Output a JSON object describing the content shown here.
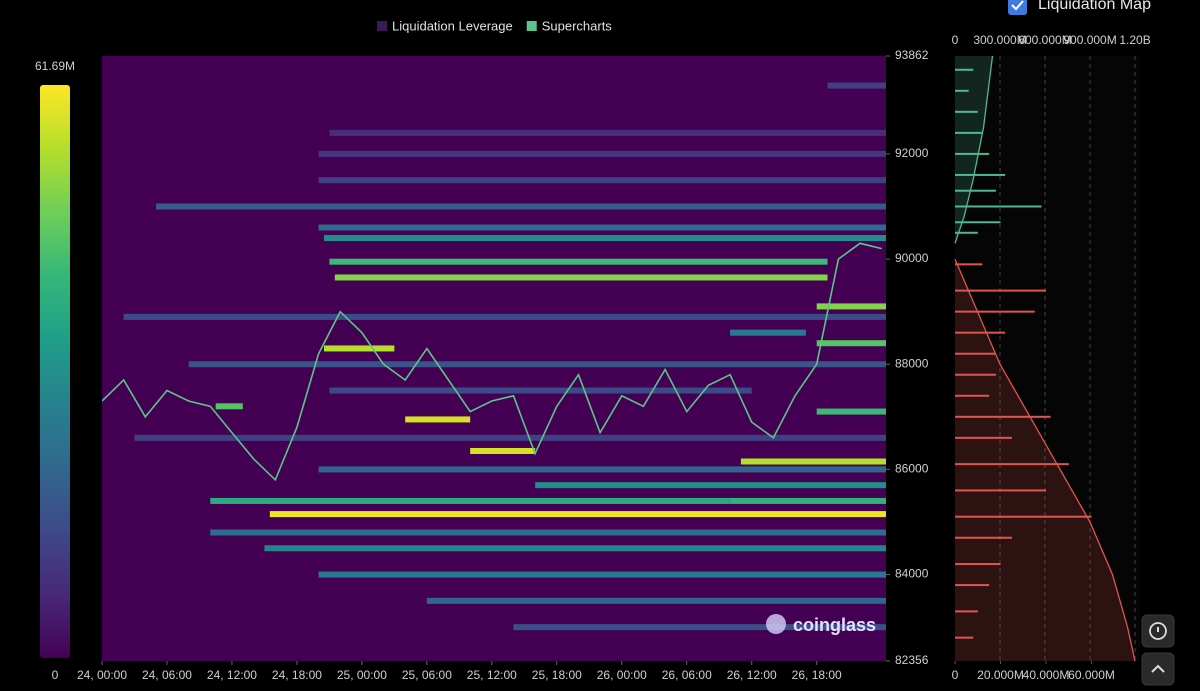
{
  "chart_data": [
    {
      "type": "heatmap",
      "series": [
        {
          "name": "Liquidation Leverage",
          "color": "#3b1a56",
          "bands": [
            {
              "price": 85150,
              "start": 15.5,
              "end": 72.4,
              "value": 60
            },
            {
              "price": 86150,
              "start": 59,
              "end": 72.4,
              "value": 55
            },
            {
              "price": 85400,
              "start": 58,
              "end": 72.4,
              "value": 40
            },
            {
              "price": 85700,
              "start": 40,
              "end": 72.4,
              "value": 30
            },
            {
              "price": 84500,
              "start": 15,
              "end": 72.4,
              "value": 28
            },
            {
              "price": 84000,
              "start": 20,
              "end": 72.4,
              "value": 25
            },
            {
              "price": 83500,
              "start": 30,
              "end": 72.4,
              "value": 20
            },
            {
              "price": 83000,
              "start": 38,
              "end": 72.4,
              "value": 15
            },
            {
              "price": 84800,
              "start": 10,
              "end": 72.4,
              "value": 22
            },
            {
              "price": 86600,
              "start": 3,
              "end": 72.4,
              "value": 12
            },
            {
              "price": 86950,
              "start": 28,
              "end": 34,
              "value": 58
            },
            {
              "price": 86350,
              "start": 34,
              "end": 40,
              "value": 58
            },
            {
              "price": 88300,
              "start": 20.5,
              "end": 27,
              "value": 55
            },
            {
              "price": 87500,
              "start": 21,
              "end": 60,
              "value": 14
            },
            {
              "price": 89650,
              "start": 21.5,
              "end": 67,
              "value": 50
            },
            {
              "price": 89950,
              "start": 21,
              "end": 67,
              "value": 42
            },
            {
              "price": 90400,
              "start": 20.5,
              "end": 72.4,
              "value": 30
            },
            {
              "price": 90600,
              "start": 20,
              "end": 72.4,
              "value": 22
            },
            {
              "price": 91000,
              "start": 5,
              "end": 72.4,
              "value": 18
            },
            {
              "price": 91500,
              "start": 20,
              "end": 72.4,
              "value": 12
            },
            {
              "price": 92000,
              "start": 20,
              "end": 72.4,
              "value": 10
            },
            {
              "price": 92400,
              "start": 21,
              "end": 72.4,
              "value": 8
            },
            {
              "price": 93300,
              "start": 67,
              "end": 72.4,
              "value": 12
            },
            {
              "price": 88900,
              "start": 2,
              "end": 72.4,
              "value": 14
            },
            {
              "price": 88000,
              "start": 8,
              "end": 72.4,
              "value": 16
            },
            {
              "price": 88600,
              "start": 58,
              "end": 65,
              "value": 25
            },
            {
              "price": 87200,
              "start": 10.5,
              "end": 13,
              "value": 45
            },
            {
              "price": 85400,
              "start": 10,
              "end": 58,
              "value": 38
            },
            {
              "price": 86000,
              "start": 20,
              "end": 72.4,
              "value": 20
            },
            {
              "price": 89100,
              "start": 66,
              "end": 72.4,
              "value": 50
            },
            {
              "price": 88400,
              "start": 66,
              "end": 72.4,
              "value": 45
            },
            {
              "price": 87100,
              "start": 66,
              "end": 72.4,
              "value": 42
            }
          ]
        },
        {
          "name": "Supercharts",
          "color": "#5cc489",
          "x": [
            0,
            2,
            4,
            6,
            8,
            10,
            12,
            14,
            16,
            18,
            20,
            22,
            24,
            26,
            28,
            30,
            32,
            34,
            36,
            38,
            40,
            42,
            44,
            46,
            48,
            50,
            52,
            54,
            56,
            58,
            60,
            62,
            64,
            66,
            68,
            70,
            72
          ],
          "values": [
            87300,
            87700,
            87000,
            87500,
            87300,
            87200,
            86700,
            86200,
            85800,
            86800,
            88200,
            89000,
            88600,
            88000,
            87700,
            88300,
            87700,
            87100,
            87300,
            87400,
            86300,
            87200,
            87800,
            86700,
            87400,
            87200,
            87900,
            87100,
            87600,
            87800,
            86900,
            86600,
            87400,
            88000,
            90000,
            90300,
            90200
          ]
        }
      ],
      "xlim": [
        0,
        72.4
      ],
      "xticks": [
        {
          "value": 0,
          "label": "24, 00:00"
        },
        {
          "value": 6,
          "label": "24, 06:00"
        },
        {
          "value": 12,
          "label": "24, 12:00"
        },
        {
          "value": 18,
          "label": "24, 18:00"
        },
        {
          "value": 24,
          "label": "25, 00:00"
        },
        {
          "value": 30,
          "label": "25, 06:00"
        },
        {
          "value": 36,
          "label": "25, 12:00"
        },
        {
          "value": 42,
          "label": "25, 18:00"
        },
        {
          "value": 48,
          "label": "26, 00:00"
        },
        {
          "value": 54,
          "label": "26, 06:00"
        },
        {
          "value": 60,
          "label": "26, 12:00"
        },
        {
          "value": 66,
          "label": "26, 18:00"
        }
      ],
      "ylim": [
        82356,
        93862
      ],
      "yticks": [
        93862,
        92000,
        90000,
        88000,
        86000,
        84000,
        82356
      ],
      "colorlim": [
        0,
        61.69
      ],
      "colorticks": [
        0,
        {
          "value": 61.69,
          "label": "61.69M"
        }
      ]
    },
    {
      "type": "liquidation-map",
      "title": "Liquidation Map",
      "ylim": [
        82356,
        93862
      ],
      "xlim": [
        0,
        81.3
      ],
      "xticks": [
        0,
        {
          "value": 20,
          "label": "20.000M"
        },
        {
          "value": 40,
          "label": "40.000M"
        },
        {
          "value": 60,
          "label": "60.000M"
        }
      ],
      "x2lim": [
        0,
        1233
      ],
      "x2ticks": [
        0,
        {
          "value": 300,
          "label": "300.000M"
        },
        {
          "value": 600,
          "label": "600.000M"
        },
        {
          "value": 900,
          "label": "900.000M"
        },
        {
          "value": 1200,
          "label": "1.20B"
        }
      ],
      "series": [
        {
          "color": "#4fb98f",
          "prices": [
            93600,
            93200,
            92800,
            92400,
            92000,
            91600,
            91300,
            91000,
            90700,
            90500
          ],
          "values": [
            8,
            6,
            10,
            12,
            15,
            22,
            18,
            38,
            20,
            10
          ],
          "cum_prices": [
            90300,
            90800,
            91500,
            92500,
            93862
          ],
          "cum_values": [
            0,
            60,
            120,
            190,
            250
          ]
        },
        {
          "color": "#e0554f",
          "prices": [
            89900,
            89400,
            89000,
            88600,
            88200,
            87800,
            87400,
            87000,
            86600,
            86100,
            85600,
            85100,
            84700,
            84200,
            83800,
            83300,
            82800
          ],
          "values": [
            12,
            40,
            35,
            22,
            18,
            18,
            15,
            42,
            25,
            50,
            40,
            60,
            25,
            20,
            15,
            10,
            8
          ],
          "cum_prices": [
            90000,
            89000,
            88000,
            87000,
            86000,
            85000,
            84000,
            83000,
            82356
          ],
          "cum_values": [
            0,
            150,
            300,
            500,
            700,
            900,
            1050,
            1150,
            1200
          ]
        }
      ]
    }
  ],
  "ui": {
    "watermark": "coinglass"
  }
}
